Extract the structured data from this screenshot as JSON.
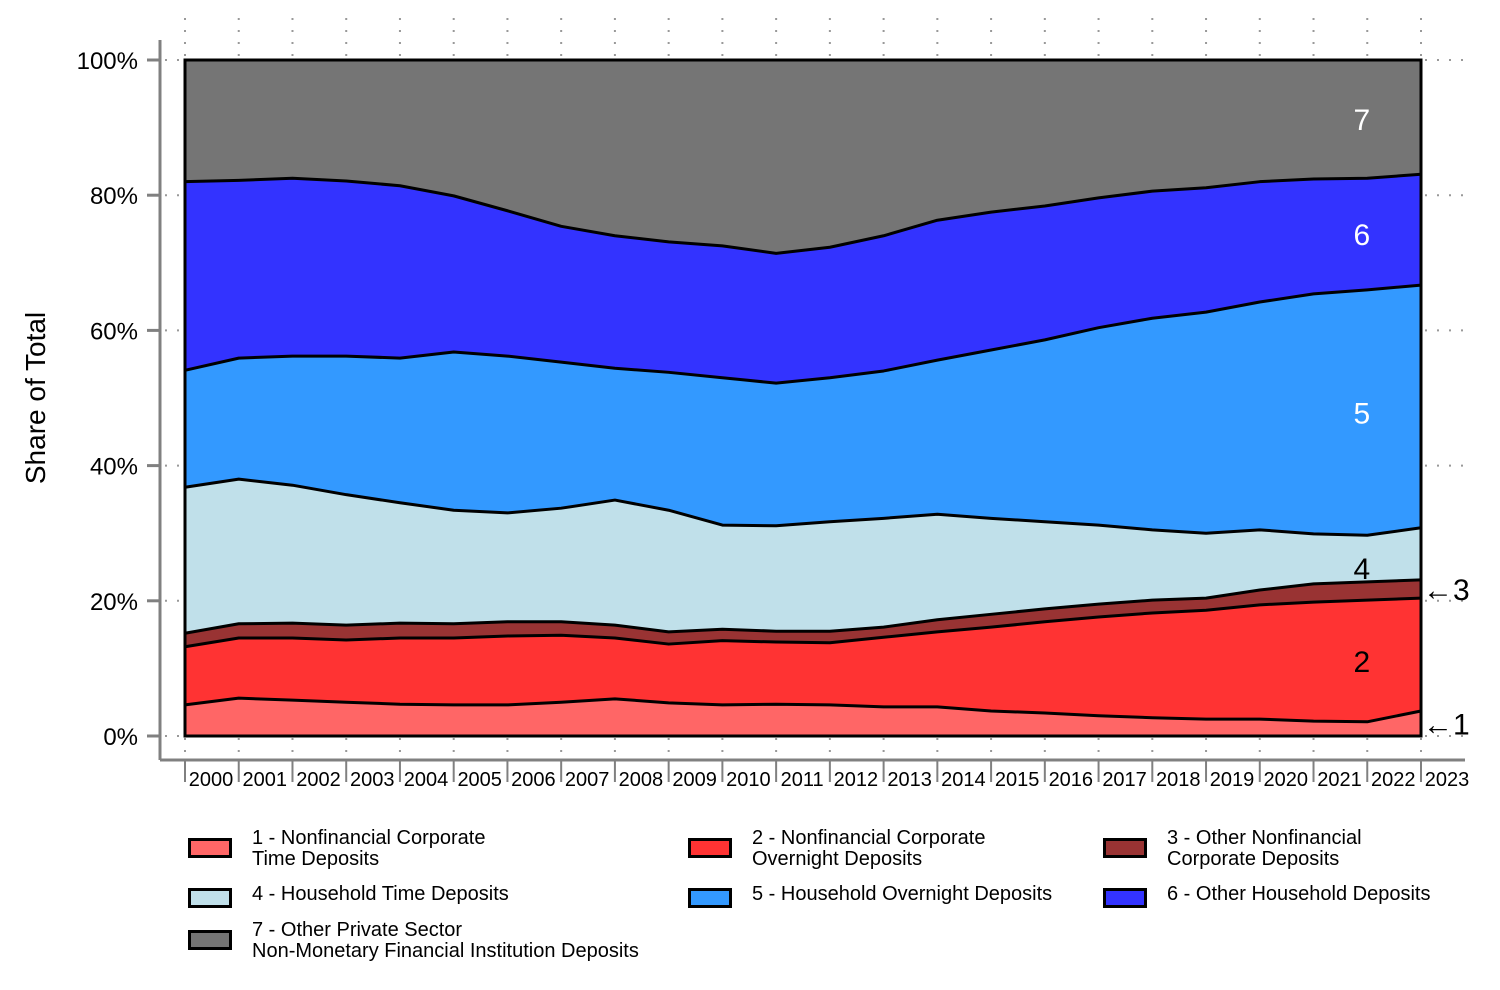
{
  "chart_data": {
    "type": "area",
    "stacked": true,
    "title": "",
    "xlabel": "",
    "ylabel": "Share of Total",
    "ylim": [
      0,
      100
    ],
    "yticks": [
      0,
      20,
      40,
      60,
      80,
      100
    ],
    "ytick_labels": [
      "0%",
      "20%",
      "40%",
      "60%",
      "80%",
      "100%"
    ],
    "x": [
      2000,
      2001,
      2002,
      2003,
      2004,
      2005,
      2006,
      2007,
      2008,
      2009,
      2010,
      2011,
      2012,
      2013,
      2014,
      2015,
      2016,
      2017,
      2018,
      2019,
      2020,
      2021,
      2022,
      2023
    ],
    "xtick_labels": [
      "2000",
      "2001",
      "2002",
      "2003",
      "2004",
      "2005",
      "2006",
      "2007",
      "2008",
      "2009",
      "2010",
      "2011",
      "2012",
      "2013",
      "2014",
      "2015",
      "2016",
      "2017",
      "2018",
      "2019",
      "2020",
      "2021",
      "2022",
      "2023"
    ],
    "grid": true,
    "legend_position": "bottom",
    "series": [
      {
        "id": "1",
        "name": "1 - Nonfinancial Corporate\nTime Deposits",
        "color": "#ff6666",
        "label_color": "#000000",
        "values": [
          4.6,
          5.6,
          5.3,
          5.0,
          4.7,
          4.6,
          4.6,
          5.0,
          5.5,
          4.9,
          4.6,
          4.7,
          4.6,
          4.3,
          4.3,
          3.7,
          3.4,
          3.0,
          2.7,
          2.5,
          2.5,
          2.2,
          2.1,
          3.7
        ]
      },
      {
        "id": "2",
        "name": "2 - Nonfinancial Corporate\nOvernight Deposits",
        "color": "#ff3333",
        "label_color": "#000000",
        "values": [
          8.6,
          8.9,
          9.2,
          9.2,
          9.8,
          9.9,
          10.2,
          9.9,
          9.0,
          8.7,
          9.5,
          9.2,
          9.2,
          10.3,
          11.1,
          12.4,
          13.5,
          14.6,
          15.5,
          16.1,
          16.9,
          17.6,
          18.0,
          16.7
        ]
      },
      {
        "id": "3",
        "name": "3 - Other Nonfinancial\nCorporate Deposits",
        "color": "#993333",
        "label_color": "#000000",
        "values": [
          2.0,
          2.1,
          2.2,
          2.2,
          2.2,
          2.1,
          2.1,
          2.0,
          1.9,
          1.8,
          1.7,
          1.6,
          1.7,
          1.5,
          1.8,
          1.9,
          1.9,
          1.9,
          1.9,
          1.8,
          2.2,
          2.7,
          2.7,
          2.7
        ]
      },
      {
        "id": "4",
        "name": "4 - Household Time Deposits",
        "color": "#c0e0ea",
        "label_color": "#000000",
        "values": [
          21.6,
          21.4,
          20.4,
          19.3,
          17.8,
          16.8,
          16.1,
          16.8,
          18.5,
          18.0,
          15.4,
          15.6,
          16.2,
          16.1,
          15.6,
          14.2,
          12.9,
          11.7,
          10.4,
          9.6,
          8.9,
          7.4,
          6.9,
          7.7
        ]
      },
      {
        "id": "5",
        "name": "5 - Household Overnight Deposits",
        "color": "#3399ff",
        "label_color": "#ffffff",
        "values": [
          17.3,
          17.9,
          19.1,
          20.5,
          21.4,
          23.4,
          23.2,
          21.6,
          19.5,
          20.4,
          21.8,
          21.1,
          21.3,
          21.8,
          22.8,
          24.9,
          26.9,
          29.2,
          31.3,
          32.7,
          33.7,
          35.5,
          36.3,
          35.9
        ]
      },
      {
        "id": "6",
        "name": "6 - Other Household Deposits",
        "color": "#3333ff",
        "label_color": "#ffffff",
        "values": [
          27.9,
          26.3,
          26.3,
          25.9,
          25.5,
          23.1,
          21.5,
          20.1,
          19.6,
          19.3,
          19.5,
          19.2,
          19.3,
          20.0,
          20.7,
          20.4,
          19.8,
          19.2,
          18.8,
          18.4,
          17.8,
          17.0,
          16.5,
          16.4
        ]
      },
      {
        "id": "7",
        "name": "7 - Other Private Sector\nNon-Monetary Financial Institution Deposits",
        "color": "#757575",
        "label_color": "#ffffff",
        "values": [
          18.0,
          17.8,
          17.5,
          17.9,
          18.6,
          20.1,
          22.3,
          24.6,
          26.0,
          26.9,
          27.5,
          28.6,
          27.7,
          26.0,
          23.7,
          22.5,
          21.6,
          20.4,
          19.4,
          18.9,
          18.0,
          17.6,
          17.5,
          16.9
        ]
      }
    ],
    "annotations": [
      {
        "text": "7",
        "series": "7",
        "placement": "inside"
      },
      {
        "text": "6",
        "series": "6",
        "placement": "inside"
      },
      {
        "text": "5",
        "series": "5",
        "placement": "inside"
      },
      {
        "text": "4",
        "series": "4",
        "placement": "inside"
      },
      {
        "text": "2",
        "series": "2",
        "placement": "inside"
      },
      {
        "text": "←3",
        "series": "3",
        "placement": "right-arrow"
      },
      {
        "text": "←1",
        "series": "1",
        "placement": "right-arrow"
      }
    ]
  }
}
